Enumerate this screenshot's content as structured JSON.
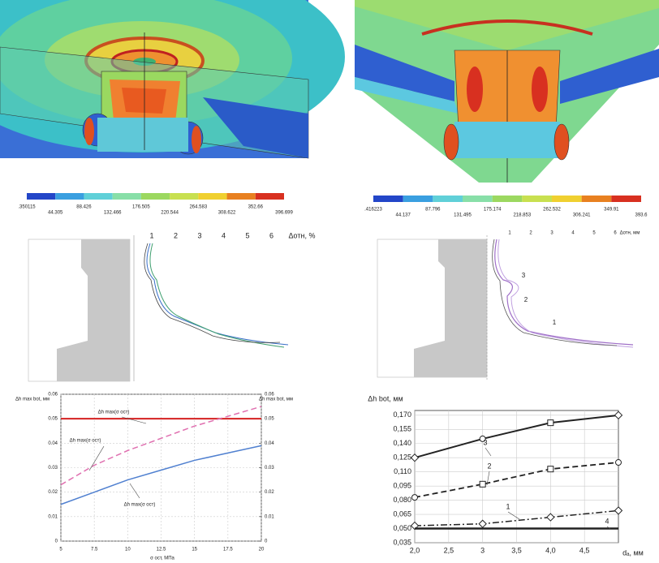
{
  "colorbars": [
    {
      "colors": [
        "#2346c8",
        "#3a9fe0",
        "#60d0d8",
        "#88dfa8",
        "#9cd860",
        "#c8e050",
        "#f0d030",
        "#e88020",
        "#d83020"
      ],
      "labels": [
        ".350115",
        "44.305",
        "88.426",
        "132.466",
        "176.505",
        "220.544",
        "264.583",
        "308.622",
        "352.66",
        "396.699"
      ]
    },
    {
      "colors": [
        "#2346c8",
        "#3a9fe0",
        "#60d0d8",
        "#88dfa8",
        "#9cd860",
        "#c8e050",
        "#f0d030",
        "#e88020",
        "#d83020"
      ],
      "labels": [
        ".416223",
        "44.137",
        "87.796",
        "131.495",
        "175.174",
        "218.853",
        "262.532",
        "306.241",
        "349.91",
        "393.6"
      ]
    }
  ],
  "profiles": [
    {
      "ticks": [
        1,
        2,
        3,
        4,
        5,
        6
      ],
      "axis_label": "Δотн, %"
    },
    {
      "ticks": [
        1,
        2,
        3,
        4,
        5,
        6
      ],
      "axis_label": "Δотн, мм",
      "curve_labels": [
        "3",
        "2",
        "1"
      ]
    }
  ],
  "chart_data": [
    {
      "type": "line",
      "x_label": "σ ост, МПа",
      "y_label": "Δh max bot, мм",
      "y2_label": "Δh max bot, мм",
      "x": [
        5,
        7.5,
        10,
        12.5,
        15,
        17.5,
        20
      ],
      "xlim": [
        5,
        20
      ],
      "xticks": [
        5,
        7.5,
        10,
        12.5,
        15,
        17.5,
        20
      ],
      "ylim": [
        0,
        0.06
      ],
      "yticks": [
        0,
        0.01,
        0.02,
        0.03,
        0.04,
        0.05,
        0.06
      ],
      "y2lim": [
        0,
        0.06
      ],
      "y2ticks": [
        0,
        0.01,
        0.02,
        0.03,
        0.04,
        0.05,
        0.06
      ],
      "grid": true,
      "series": [
        {
          "name": "Δh max(σ ост)",
          "color": "#d42020",
          "dash": "solid",
          "width": 2,
          "values": [
            0.05,
            0.05,
            0.05,
            0.05,
            0.05,
            0.05,
            0.05
          ]
        },
        {
          "name": "Δh max(σ ост)",
          "color": "#e070b0",
          "dash": "dashed",
          "width": 1.5,
          "values": [
            0.023,
            0.031,
            0.037,
            0.042,
            0.047,
            0.051,
            0.055
          ]
        },
        {
          "name": "Δh max(σ ост)",
          "color": "#5080d0",
          "dash": "solid",
          "width": 1.5,
          "values": [
            0.015,
            0.02,
            0.025,
            0.029,
            0.033,
            0.036,
            0.039
          ]
        }
      ]
    },
    {
      "type": "line",
      "x_label": "dₐ, мм",
      "y_label": "Δh bot, мм",
      "x": [
        2,
        3,
        4,
        5
      ],
      "xlim": [
        2,
        5
      ],
      "xticks": [
        {
          "value": 2,
          "label": "2,0"
        },
        {
          "value": 2.5,
          "label": "2,5"
        },
        3,
        {
          "value": 3.5,
          "label": "3,5"
        },
        {
          "value": 4,
          "label": "4,0"
        },
        {
          "value": 4.5,
          "label": "4,5"
        }
      ],
      "ylim": [
        0.035,
        0.175
      ],
      "yticks": [
        {
          "value": 0.035,
          "label": "0,035"
        },
        {
          "value": 0.05,
          "label": "0,050"
        },
        {
          "value": 0.065,
          "label": "0,065"
        },
        {
          "value": 0.08,
          "label": "0,080"
        },
        {
          "value": 0.095,
          "label": "0,095"
        },
        {
          "value": 0.11,
          "label": "0,110"
        },
        {
          "value": 0.125,
          "label": "0,125"
        },
        {
          "value": 0.14,
          "label": "0,140"
        },
        {
          "value": 0.155,
          "label": "0,155"
        },
        {
          "value": 0.17,
          "label": "0,170"
        }
      ],
      "grid": true,
      "series": [
        {
          "name": "3",
          "color": "#222222",
          "dash": "solid",
          "width": 2,
          "values": [
            0.125,
            0.145,
            0.162,
            0.17
          ],
          "markers": [
            "diamond",
            "circle",
            "square",
            "diamond"
          ]
        },
        {
          "name": "2",
          "color": "#222222",
          "dash": "dashed",
          "width": 1.8,
          "values": [
            0.083,
            0.097,
            0.113,
            0.12
          ],
          "markers": [
            "circle",
            "square",
            "square",
            "circle"
          ]
        },
        {
          "name": "1",
          "color": "#222222",
          "dash": "dashdot",
          "width": 1.5,
          "values": [
            0.053,
            0.055,
            0.062,
            0.069
          ],
          "markers": [
            "diamond",
            "diamond",
            "diamond",
            "diamond"
          ]
        },
        {
          "name": "4",
          "color": "#222222",
          "dash": "solid",
          "width": 2.5,
          "values": [
            0.05,
            0.05,
            0.05,
            0.05
          ]
        }
      ]
    }
  ]
}
